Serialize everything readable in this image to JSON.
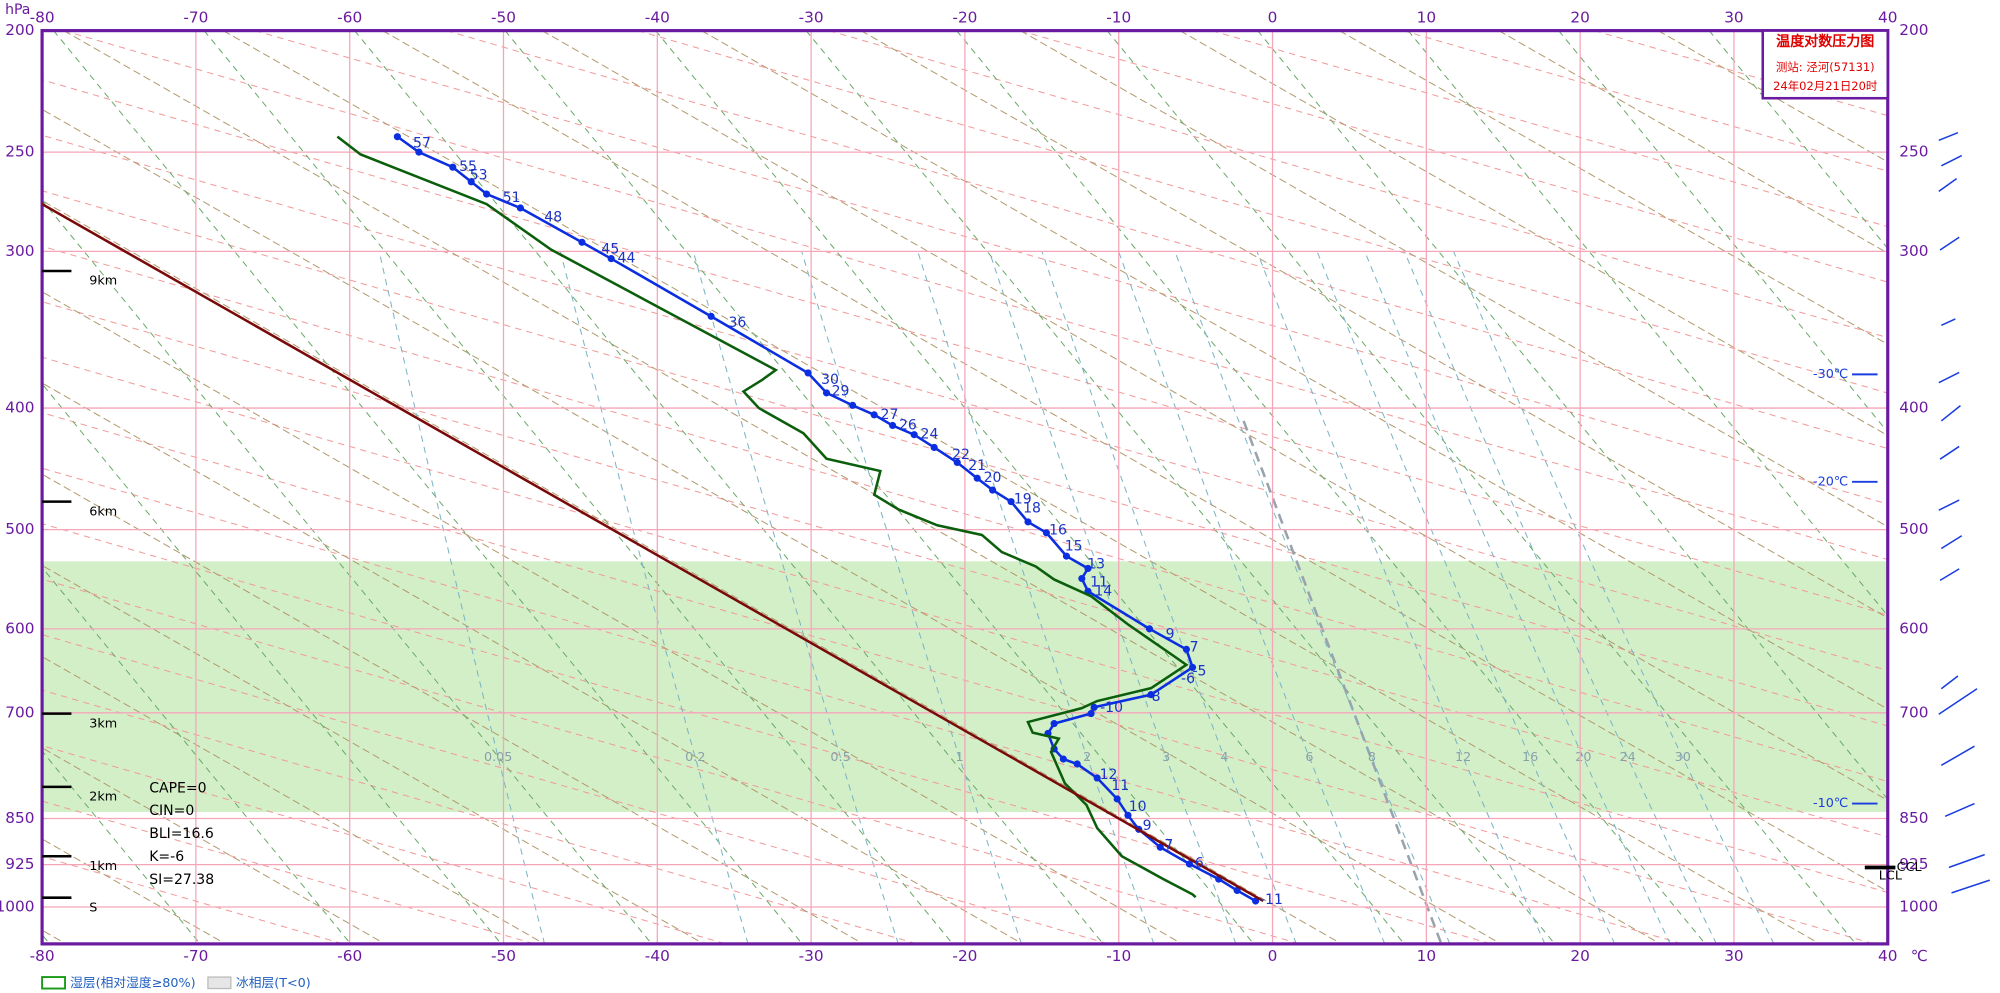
{
  "chart_data": {
    "type": "skewt",
    "title": "温度对数压力图",
    "station": "测站: 泾河(57131)",
    "time": "24年02月21日20时",
    "x_unit": "℃",
    "y_unit": "hPa",
    "xlim": [
      -80,
      40
    ],
    "xticks": [
      -80,
      -70,
      -60,
      -50,
      -40,
      -30,
      -20,
      -10,
      0,
      10,
      20,
      30,
      40
    ],
    "ylim": [
      1070,
      200
    ],
    "ylog": true,
    "yticks": [
      200,
      250,
      300,
      400,
      500,
      600,
      700,
      850,
      925,
      1000
    ],
    "grid": true,
    "series": [
      {
        "color": "#0a2ee0",
        "markers": true,
        "x": [
          -56.9,
          -55.5,
          -53.3,
          -52.1,
          -51.1,
          -48.9,
          -44.9,
          -43.0,
          -36.5,
          -30.2,
          -29.0,
          -27.3,
          -25.9,
          -24.7,
          -23.3,
          -22.0,
          -20.5,
          -19.2,
          -18.2,
          -17.0,
          -15.9,
          -14.7,
          -13.4,
          -12.0,
          -12.4,
          -12.0,
          -8.0,
          -5.6,
          -5.2,
          -7.9,
          -11.6,
          -11.8,
          -14.2,
          -14.6,
          -14.2,
          -13.6,
          -12.7,
          -11.4,
          -10.1,
          -9.4,
          -8.7,
          -7.3,
          -5.4,
          -3.5,
          -2.3,
          -1.1
        ],
        "y": [
          243,
          250,
          257,
          264,
          270,
          277,
          295,
          304,
          338,
          375,
          389,
          398,
          405,
          413,
          420,
          430,
          442,
          455,
          465,
          475,
          493,
          503,
          525,
          537,
          547,
          560,
          600,
          623,
          644,
          677,
          693,
          701,
          714,
          727,
          748,
          762,
          769,
          789,
          820,
          845,
          867,
          896,
          924,
          950,
          970,
          989
        ]
      },
      {
        "color": "#0b5e0b",
        "markers": false,
        "x": [
          -60.8,
          -59.3,
          -51.1,
          -46.9,
          -39.6,
          -32.3,
          -33.2,
          -34.4,
          -33.4,
          -30.5,
          -29.0,
          -25.5,
          -25.9,
          -24.3,
          -21.8,
          -18.9,
          -17.6,
          -15.4,
          -14.2,
          -11.8,
          -9.4,
          -6.4,
          -5.6,
          -7.9,
          -11.4,
          -12.4,
          -15.9,
          -15.6,
          -13.9,
          -14.4,
          -13.5,
          -12.1,
          -11.4,
          -9.8,
          -7.1,
          -5.2,
          -5.0
        ],
        "y": [
          243,
          251,
          275,
          299,
          334,
          373,
          380,
          388,
          400,
          419,
          439,
          449,
          469,
          482,
          496,
          505,
          521,
          535,
          548,
          565,
          595,
          631,
          641,
          669,
          685,
          694,
          712,
          726,
          734,
          752,
          797,
          829,
          865,
          911,
          950,
          977,
          982
        ]
      },
      {
        "color": "#7a0a0a",
        "markers": false,
        "x": [
          -80,
          -3.1
        ],
        "y": [
          275,
          950
        ]
      }
    ],
    "curve_labels": {
      "labels": [
        "57",
        "55",
        "53",
        "51",
        "48",
        "45",
        "44",
        "36",
        "30",
        "29",
        "27",
        "26",
        "24",
        "22",
        "21",
        "20",
        "19",
        "18",
        "16",
        "15",
        "13",
        "11",
        "14",
        "9",
        "7",
        "-5",
        "-6",
        "-8",
        "-10",
        "12",
        "11",
        "10",
        "9",
        "7",
        "6",
        "-11"
      ],
      "pressure": [
        246,
        257,
        261,
        272,
        282,
        299,
        304,
        342,
        380,
        388,
        405,
        413,
        420,
        436,
        445,
        455,
        473,
        481,
        501,
        516,
        533,
        551,
        560,
        606,
        621,
        649,
        658,
        680,
        694,
        785,
        801,
        832,
        862,
        893,
        923,
        987
      ]
    },
    "moist_layer": {
      "range": [
        530,
        840
      ],
      "color": "#d3efc8",
      "label": "湿层(相对湿度≥80%)"
    },
    "ice_layer": {
      "label": "冰相层(T<0)"
    },
    "indices": [
      "CAPE=0",
      "CIN=0",
      "BLI=16.6",
      "K=-6",
      "SI=27.38"
    ],
    "height_markers": {
      "labels": [
        "9km",
        "6km",
        "3km",
        "2km",
        "1km",
        "S"
      ],
      "pressure": [
        311,
        475,
        701,
        802,
        911,
        983
      ]
    },
    "levels": {
      "labels": [
        "-30℃",
        "-20℃",
        "-10℃"
      ],
      "pressure": [
        376,
        458,
        827
      ]
    },
    "ccl": {
      "label": "CCL",
      "pressure": 930
    },
    "lcl": {
      "label": "LCL",
      "pressure": 938
    },
    "mixing_ratio": {
      "ticks": [
        0.05,
        0.2,
        0.5,
        1,
        2,
        3,
        4,
        6,
        8,
        12,
        16,
        20,
        24,
        30
      ]
    }
  }
}
